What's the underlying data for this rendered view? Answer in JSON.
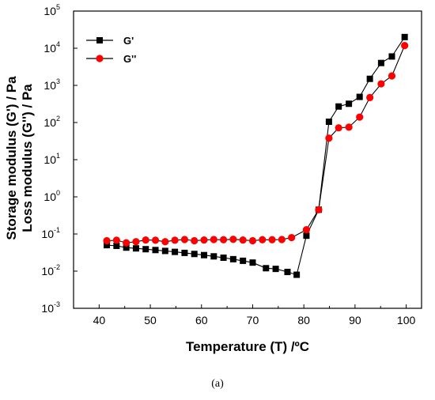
{
  "chart_data": {
    "type": "line",
    "xlabel": "Temperature (T) /ºC",
    "ylabel_line1": "Storage modulus (G') / Pa",
    "ylabel_line2": "Loss modulus (G'') / Pa",
    "x_ticks": [
      40,
      50,
      60,
      70,
      80,
      90,
      100
    ],
    "y_ticks": [
      {
        "base": "10",
        "exp": "-3"
      },
      {
        "base": "10",
        "exp": "-2"
      },
      {
        "base": "10",
        "exp": "-1"
      },
      {
        "base": "10",
        "exp": "0"
      },
      {
        "base": "10",
        "exp": "1"
      },
      {
        "base": "10",
        "exp": "2"
      },
      {
        "base": "10",
        "exp": "3"
      },
      {
        "base": "10",
        "exp": "4"
      },
      {
        "base": "10",
        "exp": "5"
      }
    ],
    "xlim": [
      35,
      103
    ],
    "ylim": [
      0.001,
      100000
    ],
    "y_scale": "log",
    "grid": false,
    "legend_position": "top-left",
    "series": [
      {
        "name": "G'",
        "color": "#000000",
        "marker": "square",
        "x": [
          41.5,
          43.4,
          45.3,
          47.2,
          49.1,
          51.0,
          52.9,
          54.8,
          56.7,
          58.6,
          60.5,
          62.4,
          64.3,
          66.2,
          68.1,
          70.0,
          72.6,
          74.5,
          76.8,
          78.6,
          80.5,
          82.9,
          84.9,
          86.8,
          88.8,
          90.9,
          92.9,
          95.1,
          97.2,
          99.7
        ],
        "y": [
          0.05,
          0.048,
          0.043,
          0.041,
          0.039,
          0.037,
          0.035,
          0.033,
          0.031,
          0.029,
          0.027,
          0.025,
          0.023,
          0.021,
          0.019,
          0.017,
          0.012,
          0.0115,
          0.0095,
          0.008,
          0.09,
          0.45,
          105,
          270,
          320,
          490,
          1500,
          4000,
          6000,
          20000
        ]
      },
      {
        "name": "G''",
        "color": "#ff0000",
        "marker": "circle",
        "x": [
          41.5,
          43.4,
          45.3,
          47.2,
          49.1,
          51.0,
          52.9,
          54.8,
          56.7,
          58.6,
          60.5,
          62.4,
          64.3,
          66.2,
          68.1,
          70.0,
          71.9,
          73.8,
          75.7,
          77.6,
          80.5,
          82.9,
          84.9,
          86.8,
          88.8,
          90.9,
          92.9,
          95.1,
          97.2,
          99.7
        ],
        "y": [
          0.066,
          0.068,
          0.058,
          0.062,
          0.069,
          0.068,
          0.062,
          0.068,
          0.071,
          0.066,
          0.069,
          0.071,
          0.07,
          0.072,
          0.069,
          0.066,
          0.07,
          0.07,
          0.071,
          0.08,
          0.13,
          0.45,
          38,
          72,
          75,
          140,
          470,
          1100,
          1800,
          11800
        ]
      }
    ]
  },
  "caption": "(a)",
  "colors": {
    "axis": "#000000",
    "g_prime": "#000000",
    "g_double_prime": "#ff0000"
  }
}
